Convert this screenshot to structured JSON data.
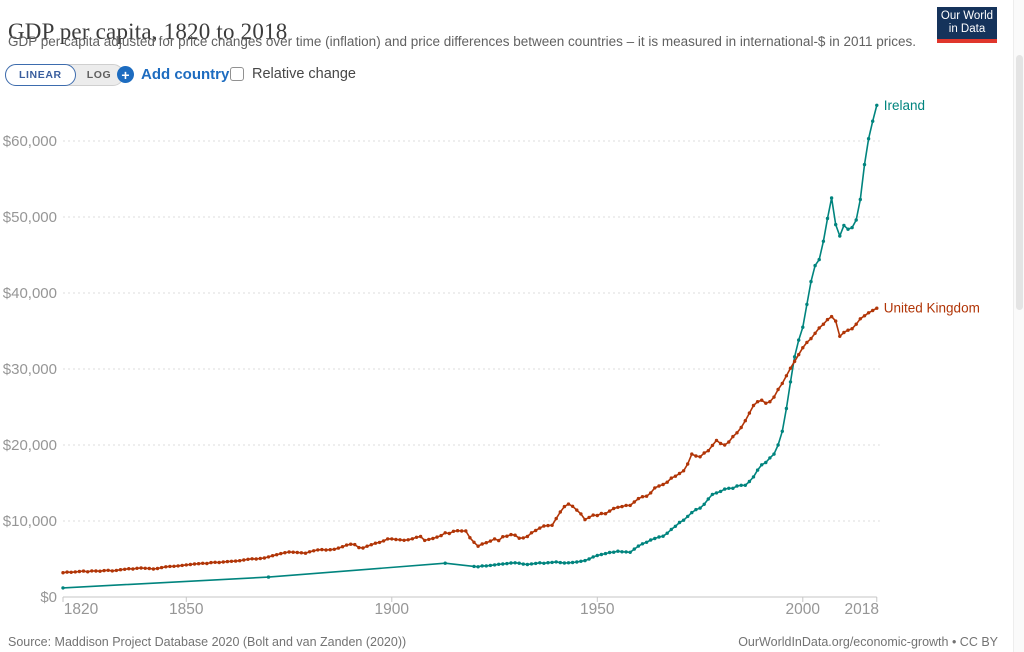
{
  "header": {
    "title": "GDP per capita, 1820 to 2018",
    "subtitle": "GDP per capita adjusted for price changes over time (inflation) and price differences between countries – it is measured in international-$ in 2011 prices."
  },
  "logo": {
    "line1": "Our World",
    "line2": "in Data",
    "navy": "#15335b",
    "red": "#e0362c"
  },
  "controls": {
    "linear_label": "LINEAR",
    "log_label": "LOG",
    "add_country_label": "Add country",
    "relative_change_label": "Relative change",
    "relative_change_checked": false,
    "accent_blue": "#1d6cc0"
  },
  "footer": {
    "source": "Source: Maddison Project Database 2020 (Bolt and van Zanden (2020))",
    "license": "OurWorldInData.org/economic-growth • CC BY"
  },
  "chart_data": {
    "type": "line",
    "title": "GDP per capita, 1820 to 2018",
    "xlabel": "",
    "ylabel": "",
    "x_range": [
      1820,
      2018
    ],
    "y_range": [
      0,
      66000
    ],
    "x_ticks": [
      1820,
      1850,
      1900,
      1950,
      2000,
      2018
    ],
    "x_tick_labels": [
      "1820",
      "1850",
      "1900",
      "1950",
      "2000",
      "2018"
    ],
    "y_ticks": [
      0,
      10000,
      20000,
      30000,
      40000,
      50000,
      60000
    ],
    "y_tick_labels": [
      "$0",
      "$10,000",
      "$20,000",
      "$30,000",
      "$40,000",
      "$50,000",
      "$60,000"
    ],
    "grid": "horizontal dashed",
    "legend_position": "end-of-line labels",
    "series": [
      {
        "name": "Ireland",
        "color": "#00847E",
        "points": [
          [
            1820,
            1200
          ],
          [
            1870,
            2620
          ],
          [
            1913,
            4450
          ],
          [
            1920,
            4020
          ],
          [
            1921,
            3970
          ],
          [
            1922,
            4090
          ],
          [
            1923,
            4090
          ],
          [
            1924,
            4160
          ],
          [
            1925,
            4220
          ],
          [
            1926,
            4300
          ],
          [
            1927,
            4340
          ],
          [
            1928,
            4390
          ],
          [
            1929,
            4470
          ],
          [
            1930,
            4500
          ],
          [
            1931,
            4450
          ],
          [
            1932,
            4330
          ],
          [
            1933,
            4280
          ],
          [
            1934,
            4350
          ],
          [
            1935,
            4420
          ],
          [
            1936,
            4500
          ],
          [
            1937,
            4430
          ],
          [
            1938,
            4510
          ],
          [
            1939,
            4550
          ],
          [
            1940,
            4620
          ],
          [
            1941,
            4520
          ],
          [
            1942,
            4470
          ],
          [
            1943,
            4500
          ],
          [
            1944,
            4540
          ],
          [
            1945,
            4610
          ],
          [
            1946,
            4700
          ],
          [
            1947,
            4790
          ],
          [
            1948,
            5000
          ],
          [
            1949,
            5270
          ],
          [
            1950,
            5460
          ],
          [
            1951,
            5590
          ],
          [
            1952,
            5710
          ],
          [
            1953,
            5850
          ],
          [
            1954,
            5900
          ],
          [
            1955,
            6030
          ],
          [
            1956,
            5950
          ],
          [
            1957,
            5930
          ],
          [
            1958,
            5880
          ],
          [
            1959,
            6300
          ],
          [
            1960,
            6700
          ],
          [
            1961,
            7000
          ],
          [
            1962,
            7200
          ],
          [
            1963,
            7500
          ],
          [
            1964,
            7700
          ],
          [
            1965,
            7900
          ],
          [
            1966,
            8000
          ],
          [
            1967,
            8400
          ],
          [
            1968,
            8900
          ],
          [
            1969,
            9300
          ],
          [
            1970,
            9800
          ],
          [
            1971,
            10100
          ],
          [
            1972,
            10600
          ],
          [
            1973,
            11100
          ],
          [
            1974,
            11500
          ],
          [
            1975,
            11700
          ],
          [
            1976,
            12200
          ],
          [
            1977,
            12900
          ],
          [
            1978,
            13500
          ],
          [
            1979,
            13700
          ],
          [
            1980,
            13900
          ],
          [
            1981,
            14200
          ],
          [
            1982,
            14300
          ],
          [
            1983,
            14300
          ],
          [
            1984,
            14600
          ],
          [
            1985,
            14700
          ],
          [
            1986,
            14700
          ],
          [
            1987,
            15200
          ],
          [
            1988,
            15800
          ],
          [
            1989,
            16700
          ],
          [
            1990,
            17400
          ],
          [
            1991,
            17700
          ],
          [
            1992,
            18300
          ],
          [
            1993,
            18800
          ],
          [
            1994,
            20000
          ],
          [
            1995,
            21800
          ],
          [
            1996,
            24800
          ],
          [
            1997,
            28300
          ],
          [
            1998,
            31600
          ],
          [
            1999,
            33800
          ],
          [
            2000,
            35500
          ],
          [
            2001,
            38500
          ],
          [
            2002,
            41500
          ],
          [
            2003,
            43600
          ],
          [
            2004,
            44400
          ],
          [
            2005,
            46800
          ],
          [
            2006,
            49800
          ],
          [
            2007,
            52500
          ],
          [
            2008,
            49000
          ],
          [
            2009,
            47500
          ],
          [
            2010,
            48900
          ],
          [
            2011,
            48400
          ],
          [
            2012,
            48600
          ],
          [
            2013,
            49600
          ],
          [
            2014,
            52300
          ],
          [
            2015,
            56900
          ],
          [
            2016,
            60300
          ],
          [
            2017,
            62600
          ],
          [
            2018,
            64700
          ]
        ]
      },
      {
        "name": "United Kingdom",
        "color": "#B13507",
        "points": [
          [
            1820,
            3200
          ],
          [
            1821,
            3270
          ],
          [
            1822,
            3250
          ],
          [
            1823,
            3300
          ],
          [
            1824,
            3360
          ],
          [
            1825,
            3410
          ],
          [
            1826,
            3320
          ],
          [
            1827,
            3430
          ],
          [
            1828,
            3420
          ],
          [
            1829,
            3390
          ],
          [
            1830,
            3480
          ],
          [
            1831,
            3510
          ],
          [
            1832,
            3440
          ],
          [
            1833,
            3500
          ],
          [
            1834,
            3590
          ],
          [
            1835,
            3640
          ],
          [
            1836,
            3720
          ],
          [
            1837,
            3690
          ],
          [
            1838,
            3770
          ],
          [
            1839,
            3810
          ],
          [
            1840,
            3780
          ],
          [
            1841,
            3750
          ],
          [
            1842,
            3690
          ],
          [
            1843,
            3750
          ],
          [
            1844,
            3870
          ],
          [
            1845,
            3980
          ],
          [
            1846,
            4030
          ],
          [
            1847,
            4040
          ],
          [
            1848,
            4090
          ],
          [
            1849,
            4160
          ],
          [
            1850,
            4220
          ],
          [
            1851,
            4280
          ],
          [
            1852,
            4340
          ],
          [
            1853,
            4380
          ],
          [
            1854,
            4430
          ],
          [
            1855,
            4410
          ],
          [
            1856,
            4520
          ],
          [
            1857,
            4560
          ],
          [
            1858,
            4540
          ],
          [
            1859,
            4600
          ],
          [
            1860,
            4660
          ],
          [
            1861,
            4700
          ],
          [
            1862,
            4720
          ],
          [
            1863,
            4780
          ],
          [
            1864,
            4870
          ],
          [
            1865,
            4960
          ],
          [
            1866,
            5030
          ],
          [
            1867,
            5000
          ],
          [
            1868,
            5060
          ],
          [
            1869,
            5130
          ],
          [
            1870,
            5280
          ],
          [
            1871,
            5440
          ],
          [
            1872,
            5560
          ],
          [
            1873,
            5710
          ],
          [
            1874,
            5830
          ],
          [
            1875,
            5920
          ],
          [
            1876,
            5890
          ],
          [
            1877,
            5860
          ],
          [
            1878,
            5820
          ],
          [
            1879,
            5760
          ],
          [
            1880,
            5950
          ],
          [
            1881,
            6080
          ],
          [
            1882,
            6200
          ],
          [
            1883,
            6240
          ],
          [
            1884,
            6180
          ],
          [
            1885,
            6220
          ],
          [
            1886,
            6280
          ],
          [
            1887,
            6430
          ],
          [
            1888,
            6620
          ],
          [
            1889,
            6830
          ],
          [
            1890,
            6950
          ],
          [
            1891,
            6900
          ],
          [
            1892,
            6500
          ],
          [
            1893,
            6450
          ],
          [
            1894,
            6680
          ],
          [
            1895,
            6880
          ],
          [
            1896,
            7080
          ],
          [
            1897,
            7180
          ],
          [
            1898,
            7380
          ],
          [
            1899,
            7650
          ],
          [
            1900,
            7650
          ],
          [
            1901,
            7560
          ],
          [
            1902,
            7520
          ],
          [
            1903,
            7460
          ],
          [
            1904,
            7520
          ],
          [
            1905,
            7660
          ],
          [
            1906,
            7860
          ],
          [
            1907,
            7960
          ],
          [
            1908,
            7450
          ],
          [
            1909,
            7580
          ],
          [
            1910,
            7700
          ],
          [
            1911,
            7880
          ],
          [
            1912,
            8080
          ],
          [
            1913,
            8450
          ],
          [
            1914,
            8350
          ],
          [
            1915,
            8650
          ],
          [
            1916,
            8720
          ],
          [
            1917,
            8680
          ],
          [
            1918,
            8680
          ],
          [
            1919,
            7800
          ],
          [
            1920,
            7200
          ],
          [
            1921,
            6680
          ],
          [
            1922,
            6980
          ],
          [
            1923,
            7140
          ],
          [
            1924,
            7360
          ],
          [
            1925,
            7650
          ],
          [
            1926,
            7420
          ],
          [
            1927,
            7930
          ],
          [
            1928,
            8000
          ],
          [
            1929,
            8210
          ],
          [
            1930,
            8130
          ],
          [
            1931,
            7740
          ],
          [
            1932,
            7770
          ],
          [
            1933,
            7960
          ],
          [
            1934,
            8450
          ],
          [
            1935,
            8750
          ],
          [
            1936,
            9060
          ],
          [
            1937,
            9340
          ],
          [
            1938,
            9400
          ],
          [
            1939,
            9440
          ],
          [
            1940,
            10320
          ],
          [
            1941,
            11190
          ],
          [
            1942,
            11900
          ],
          [
            1943,
            12220
          ],
          [
            1944,
            11930
          ],
          [
            1945,
            11440
          ],
          [
            1946,
            10930
          ],
          [
            1947,
            10190
          ],
          [
            1948,
            10470
          ],
          [
            1949,
            10770
          ],
          [
            1950,
            10720
          ],
          [
            1951,
            10990
          ],
          [
            1952,
            10960
          ],
          [
            1953,
            11300
          ],
          [
            1954,
            11650
          ],
          [
            1955,
            11800
          ],
          [
            1956,
            11900
          ],
          [
            1957,
            12050
          ],
          [
            1958,
            12050
          ],
          [
            1959,
            12500
          ],
          [
            1960,
            12950
          ],
          [
            1961,
            13200
          ],
          [
            1962,
            13260
          ],
          [
            1963,
            13700
          ],
          [
            1964,
            14350
          ],
          [
            1965,
            14600
          ],
          [
            1966,
            14800
          ],
          [
            1967,
            15100
          ],
          [
            1968,
            15650
          ],
          [
            1969,
            15900
          ],
          [
            1970,
            16250
          ],
          [
            1971,
            16600
          ],
          [
            1972,
            17500
          ],
          [
            1973,
            18800
          ],
          [
            1974,
            18550
          ],
          [
            1975,
            18450
          ],
          [
            1976,
            18950
          ],
          [
            1977,
            19250
          ],
          [
            1978,
            19950
          ],
          [
            1979,
            20600
          ],
          [
            1980,
            20200
          ],
          [
            1981,
            20000
          ],
          [
            1982,
            20400
          ],
          [
            1983,
            21100
          ],
          [
            1984,
            21600
          ],
          [
            1985,
            22300
          ],
          [
            1986,
            23200
          ],
          [
            1987,
            24200
          ],
          [
            1988,
            25200
          ],
          [
            1989,
            25700
          ],
          [
            1990,
            25900
          ],
          [
            1991,
            25500
          ],
          [
            1992,
            25700
          ],
          [
            1993,
            26300
          ],
          [
            1994,
            27300
          ],
          [
            1995,
            28100
          ],
          [
            1996,
            29100
          ],
          [
            1997,
            30100
          ],
          [
            1998,
            31000
          ],
          [
            1999,
            31900
          ],
          [
            2000,
            32800
          ],
          [
            2001,
            33500
          ],
          [
            2002,
            34000
          ],
          [
            2003,
            34700
          ],
          [
            2004,
            35400
          ],
          [
            2005,
            35900
          ],
          [
            2006,
            36500
          ],
          [
            2007,
            36900
          ],
          [
            2008,
            36300
          ],
          [
            2009,
            34300
          ],
          [
            2010,
            34800
          ],
          [
            2011,
            35100
          ],
          [
            2012,
            35300
          ],
          [
            2013,
            35900
          ],
          [
            2014,
            36600
          ],
          [
            2015,
            37000
          ],
          [
            2016,
            37400
          ],
          [
            2017,
            37700
          ],
          [
            2018,
            38000
          ]
        ]
      }
    ]
  }
}
